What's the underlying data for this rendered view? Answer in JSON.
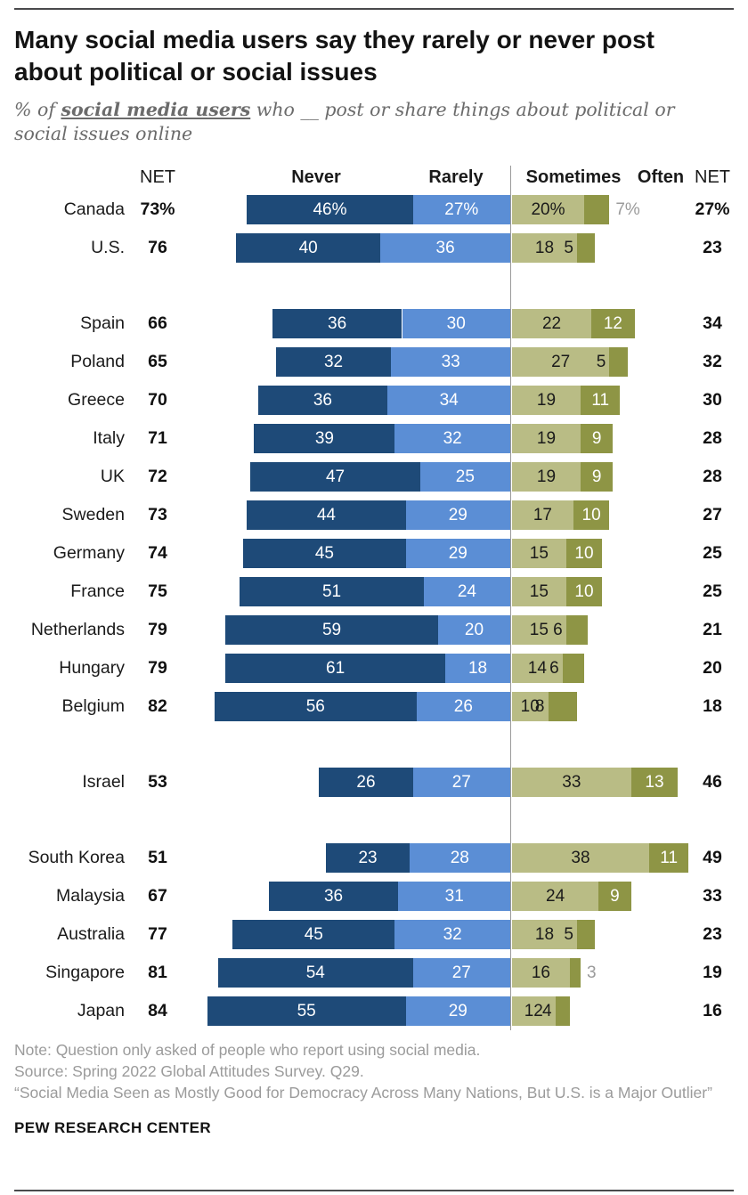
{
  "title": "Many social media users say they rarely or never post about political or social issues",
  "subtitle": {
    "prefix": "% of ",
    "highlight": "social media users",
    "suffix": " who __ post or share things about political or social issues online"
  },
  "headers": {
    "net_left": "NET",
    "col_never": "Never",
    "col_rarely": "Rarely",
    "col_sometimes": "Sometimes",
    "col_often": "Often",
    "net_right": "NET"
  },
  "colors": {
    "never": "#1e4a78",
    "rarely": "#5b8ed5",
    "sometimes": "#b9bc85",
    "often": "#8e9545",
    "divider": "#9a9a9a",
    "outside_label": "#9b9b9b"
  },
  "chart_data": {
    "type": "bar",
    "orientation": "horizontal",
    "stacked": true,
    "unit": "percent of social media users",
    "series_names": [
      "Never",
      "Rarely",
      "Sometimes",
      "Often"
    ],
    "layout_note": "Never+Rarely stack leftward from center divider; Sometimes+Often stack rightward. NET columns on both sides.",
    "rows": [
      {
        "country": "Canada",
        "net_left": "73%",
        "never": 46,
        "rarely": 27,
        "sometimes": 20,
        "often": 7,
        "net_right": "27%",
        "labels": {
          "never": "46%",
          "rarely": "27%",
          "sometimes": "20%",
          "often": "7%"
        },
        "often_label_pos": "after",
        "gap_before": false
      },
      {
        "country": "U.S.",
        "net_left": "76",
        "never": 40,
        "rarely": 36,
        "sometimes": 18,
        "often": 5,
        "net_right": "23",
        "often_label_pos": "before",
        "gap_before": false
      },
      {
        "country": "Spain",
        "net_left": "66",
        "never": 36,
        "rarely": 30,
        "sometimes": 22,
        "often": 12,
        "net_right": "34",
        "often_label_pos": "inside",
        "gap_before": true
      },
      {
        "country": "Poland",
        "net_left": "65",
        "never": 32,
        "rarely": 33,
        "sometimes": 27,
        "often": 5,
        "net_right": "32",
        "often_label_pos": "before",
        "gap_before": false
      },
      {
        "country": "Greece",
        "net_left": "70",
        "never": 36,
        "rarely": 34,
        "sometimes": 19,
        "often": 11,
        "net_right": "30",
        "often_label_pos": "inside",
        "gap_before": false
      },
      {
        "country": "Italy",
        "net_left": "71",
        "never": 39,
        "rarely": 32,
        "sometimes": 19,
        "often": 9,
        "net_right": "28",
        "often_label_pos": "inside",
        "gap_before": false
      },
      {
        "country": "UK",
        "net_left": "72",
        "never": 47,
        "rarely": 25,
        "sometimes": 19,
        "often": 9,
        "net_right": "28",
        "often_label_pos": "inside",
        "gap_before": false
      },
      {
        "country": "Sweden",
        "net_left": "73",
        "never": 44,
        "rarely": 29,
        "sometimes": 17,
        "often": 10,
        "net_right": "27",
        "often_label_pos": "inside",
        "gap_before": false
      },
      {
        "country": "Germany",
        "net_left": "74",
        "never": 45,
        "rarely": 29,
        "sometimes": 15,
        "often": 10,
        "net_right": "25",
        "often_label_pos": "inside",
        "gap_before": false
      },
      {
        "country": "France",
        "net_left": "75",
        "never": 51,
        "rarely": 24,
        "sometimes": 15,
        "often": 10,
        "net_right": "25",
        "often_label_pos": "inside",
        "gap_before": false
      },
      {
        "country": "Netherlands",
        "net_left": "79",
        "never": 59,
        "rarely": 20,
        "sometimes": 15,
        "often": 6,
        "net_right": "21",
        "often_label_pos": "before",
        "gap_before": false
      },
      {
        "country": "Hungary",
        "net_left": "79",
        "never": 61,
        "rarely": 18,
        "sometimes": 14,
        "often": 6,
        "net_right": "20",
        "often_label_pos": "before",
        "gap_before": false
      },
      {
        "country": "Belgium",
        "net_left": "82",
        "never": 56,
        "rarely": 26,
        "sometimes": 10,
        "often": 8,
        "net_right": "18",
        "often_label_pos": "before",
        "gap_before": false
      },
      {
        "country": "Israel",
        "net_left": "53",
        "never": 26,
        "rarely": 27,
        "sometimes": 33,
        "often": 13,
        "net_right": "46",
        "often_label_pos": "inside",
        "gap_before": true
      },
      {
        "country": "South Korea",
        "net_left": "51",
        "never": 23,
        "rarely": 28,
        "sometimes": 38,
        "often": 11,
        "net_right": "49",
        "often_label_pos": "inside",
        "gap_before": true
      },
      {
        "country": "Malaysia",
        "net_left": "67",
        "never": 36,
        "rarely": 31,
        "sometimes": 24,
        "often": 9,
        "net_right": "33",
        "often_label_pos": "inside",
        "gap_before": false
      },
      {
        "country": "Australia",
        "net_left": "77",
        "never": 45,
        "rarely": 32,
        "sometimes": 18,
        "often": 5,
        "net_right": "23",
        "often_label_pos": "before",
        "gap_before": false
      },
      {
        "country": "Singapore",
        "net_left": "81",
        "never": 54,
        "rarely": 27,
        "sometimes": 16,
        "often": 3,
        "net_right": "19",
        "often_label_pos": "after",
        "gap_before": false
      },
      {
        "country": "Japan",
        "net_left": "84",
        "never": 55,
        "rarely": 29,
        "sometimes": 12,
        "often": 4,
        "net_right": "16",
        "often_label_pos": "before",
        "gap_before": false
      }
    ]
  },
  "notes": {
    "line1": "Note: Question only asked of people who report using social media.",
    "line2": "Source: Spring 2022 Global Attitudes Survey. Q29.",
    "line3": "“Social Media Seen as Mostly Good for Democracy Across Many Nations, But U.S. is a Major Outlier”"
  },
  "footer": "PEW RESEARCH CENTER"
}
